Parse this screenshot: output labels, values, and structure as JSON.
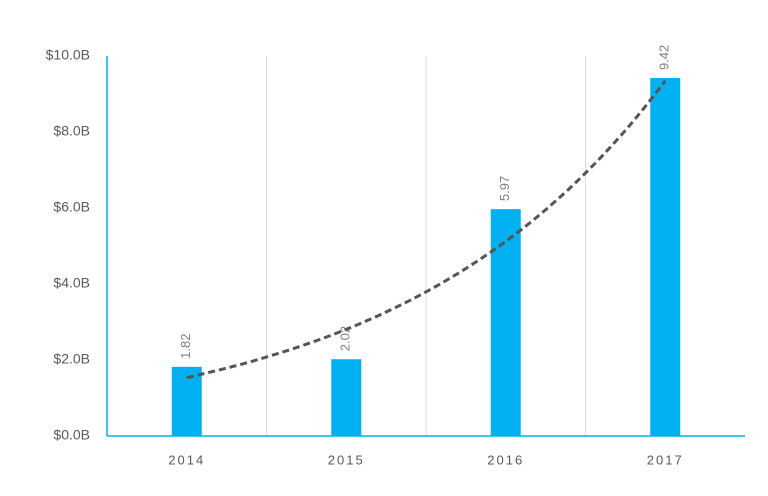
{
  "chart_data": {
    "type": "bar",
    "categories": [
      "2014",
      "2015",
      "2016",
      "2017"
    ],
    "values": [
      1.82,
      2.02,
      5.97,
      9.42
    ],
    "color": "#00b0f0",
    "ylim": [
      0,
      10
    ],
    "yticks": [
      {
        "value": 0,
        "label": "$0.0B"
      },
      {
        "value": 2,
        "label": "$2.0B"
      },
      {
        "value": 4,
        "label": "$4.0B"
      },
      {
        "value": 6,
        "label": "$6.0B"
      },
      {
        "value": 8,
        "label": "$8.0B"
      },
      {
        "value": 10,
        "label": "$10.0B"
      }
    ],
    "grid": "x",
    "axis_color": "#00b0f0",
    "trendline": "exponential",
    "trendline_color": "#555555"
  }
}
